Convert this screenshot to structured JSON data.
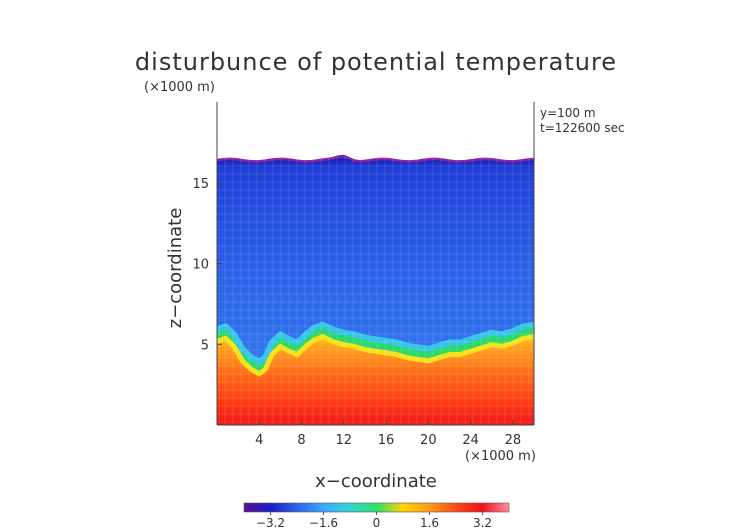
{
  "title": "disturbunce of potential temperature",
  "xlabel": "x−coordinate",
  "ylabel": "z−coordinate",
  "x_unit": "(×1000 m)",
  "z_unit": "(×1000 m)",
  "annotations": {
    "y_slice": "y=100  m",
    "time": "t=122600 sec"
  },
  "colorbar": {
    "tick_labels": [
      "−3.2",
      "−1.6",
      "0",
      "1.6",
      "3.2"
    ],
    "tick_values": [
      -3.2,
      -1.6,
      0,
      1.6,
      3.2
    ],
    "range": [
      -4.0,
      4.0
    ],
    "colors": [
      "#5a0f8f",
      "#1c1cc8",
      "#2a64e8",
      "#3aa8ff",
      "#33d6d6",
      "#2ee06a",
      "#ffd400",
      "#ff9a1a",
      "#ff4a14",
      "#f0101a",
      "#ff8fa6"
    ]
  },
  "chart_data": {
    "type": "heatmap",
    "title": "disturbunce of potential temperature",
    "xlabel": "x−coordinate",
    "ylabel": "z−coordinate",
    "xlim": [
      0,
      30
    ],
    "ylim": [
      0,
      20
    ],
    "xticks": [
      4,
      8,
      12,
      16,
      20,
      24,
      28
    ],
    "yticks": [
      5,
      10,
      15
    ],
    "xtick_labels": [
      "4",
      "8",
      "12",
      "16",
      "20",
      "24",
      "28"
    ],
    "ytick_labels": [
      "5",
      "10",
      "15"
    ],
    "field_top_z": 16.4,
    "thermocline_profile": {
      "x": [
        0,
        0.8,
        1.6,
        2.4,
        3.2,
        4.0,
        4.6,
        5.2,
        6.0,
        6.8,
        7.6,
        8.4,
        9.2,
        10.0,
        11.0,
        12.0,
        13.0,
        14.0,
        15.0,
        16.0,
        17.0,
        18.0,
        19.0,
        20.0,
        21.0,
        22.0,
        23.0,
        24.0,
        25.0,
        26.0,
        27.0,
        28.0,
        29.0,
        30.0
      ],
      "z": [
        5.6,
        5.8,
        5.3,
        4.4,
        3.9,
        3.6,
        3.9,
        4.8,
        5.3,
        5.0,
        4.8,
        5.3,
        5.7,
        5.9,
        5.6,
        5.4,
        5.3,
        5.1,
        5.0,
        4.9,
        4.8,
        4.6,
        4.5,
        4.4,
        4.6,
        4.8,
        4.8,
        5.0,
        5.2,
        5.4,
        5.3,
        5.5,
        5.8,
        5.9
      ]
    },
    "values_summary": {
      "upper_layer": -2.0,
      "lower_layer": 2.8,
      "max_lower_layer": 3.6,
      "min_near_top": -3.2
    }
  }
}
